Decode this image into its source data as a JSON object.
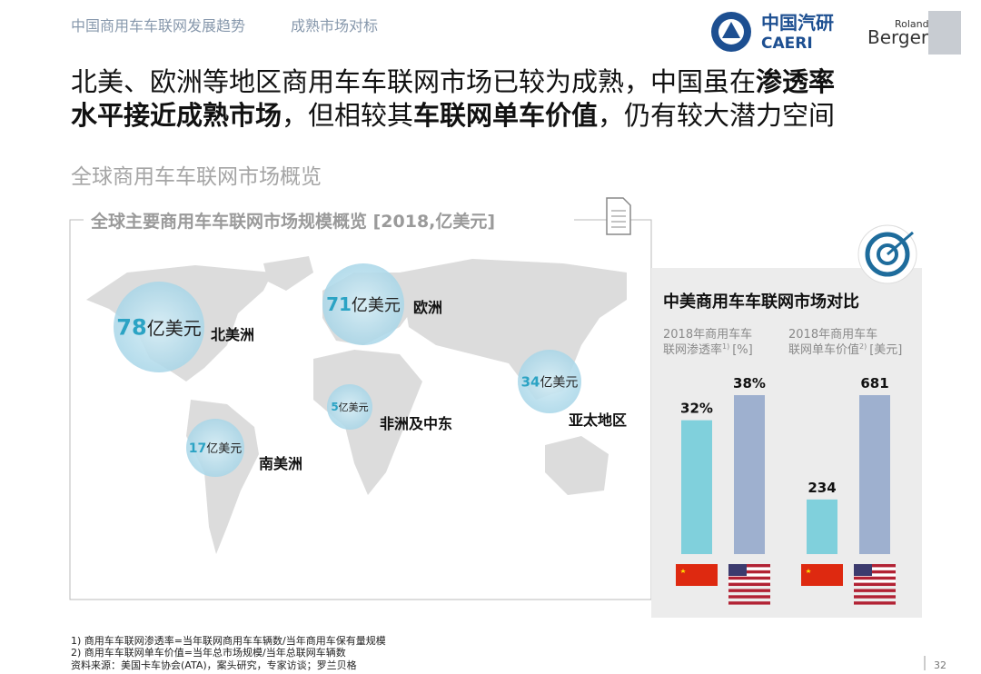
{
  "header": {
    "breadcrumb": [
      "中国商用车车联网发展趋势",
      "成熟市场对标"
    ],
    "logo_cn": "中国汽研",
    "logo_en": "CAERI",
    "logo_rb_top": "Roland",
    "logo_rb": "Berger"
  },
  "headline": {
    "lines": [
      [
        {
          "text": "北美、欧洲等地区商用车车联网市场已较为成熟，中国虽在"
        },
        {
          "text": "渗透率",
          "bold": true
        }
      ],
      [
        {
          "text": "水平接近成熟市场",
          "bold": true
        },
        {
          "text": "，但相较其"
        },
        {
          "text": "车联网单车价值",
          "bold": true
        },
        {
          "text": "，仍有较大潜力空间"
        }
      ]
    ]
  },
  "section_title": "全球商用车车联网市场概览",
  "map_panel": {
    "title": "全球主要商用车车联网市场规模概览 [2018,亿美元]",
    "markets": [
      {
        "value": 78,
        "unit": "亿美元",
        "region": "北美洲"
      },
      {
        "value": 71,
        "unit": "亿美元",
        "region": "欧洲"
      },
      {
        "value": 34,
        "unit": "亿美元",
        "region": "亚太地区"
      },
      {
        "value": 5,
        "unit": "亿美元",
        "region": "非洲及中东"
      },
      {
        "value": 17,
        "unit": "亿美元",
        "region": "南美洲"
      }
    ]
  },
  "comparison": {
    "title": "中美商用车车联网市场对比",
    "colors": [
      "#80d0dc",
      "#9eb0cf"
    ],
    "panels": [
      {
        "title": "2018年商用车车联网渗透率",
        "note": "1)",
        "unit": "[%]",
        "values": [
          32,
          38
        ],
        "value_labels": [
          "32%",
          "38%"
        ]
      },
      {
        "title": "2018年商用车车联网单车价值",
        "note": "2)",
        "unit": "[美元]",
        "values": [
          234,
          681
        ]
      }
    ]
  },
  "footnotes": [
    "1) 商用车车联网渗透率=当年联网商用车车辆数/当年商用车保有量规模",
    "2) 商用车车联网单车价值=当年总市场规模/当年总联网车辆数",
    "资料来源：美国卡车协会(ATA)，案头研究，专家访谈；罗兰贝格"
  ],
  "page_number": "32"
}
